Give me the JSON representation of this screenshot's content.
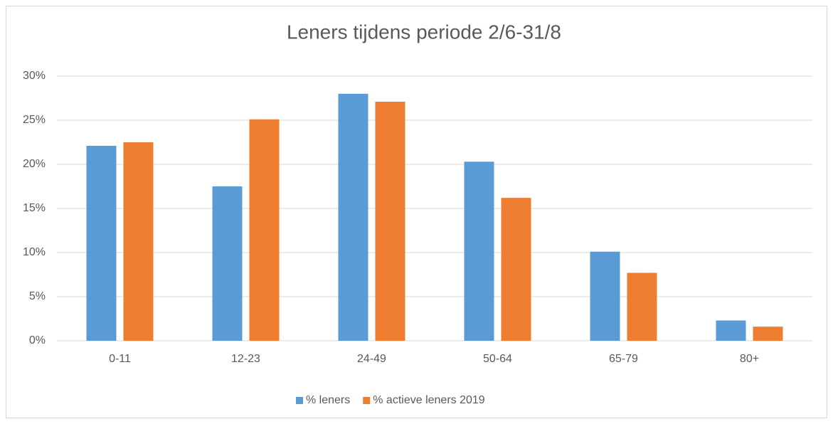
{
  "chart_data": {
    "type": "bar",
    "title": "Leners tijdens periode 2/6-31/8",
    "categories": [
      "0-11",
      "12-23",
      "24-49",
      "50-64",
      "65-79",
      "80+"
    ],
    "series": [
      {
        "name": "% leners",
        "color": "#5b9bd5",
        "values": [
          22.1,
          17.5,
          28,
          20.3,
          10.1,
          2.3
        ]
      },
      {
        "name": "% actieve leners 2019",
        "color": "#ed7d31",
        "values": [
          22.5,
          25.1,
          27.1,
          16.2,
          7.7,
          1.6
        ]
      }
    ],
    "ylim": [
      0,
      30
    ],
    "yticks": [
      {
        "value": 0,
        "label": "0%"
      },
      {
        "value": 5,
        "label": "5%"
      },
      {
        "value": 10,
        "label": "10%"
      },
      {
        "value": 15,
        "label": "15%"
      },
      {
        "value": 20,
        "label": "20%"
      },
      {
        "value": 25,
        "label": "25%"
      },
      {
        "value": 30,
        "label": "30%"
      }
    ],
    "grid": true,
    "legend": "bottom"
  }
}
